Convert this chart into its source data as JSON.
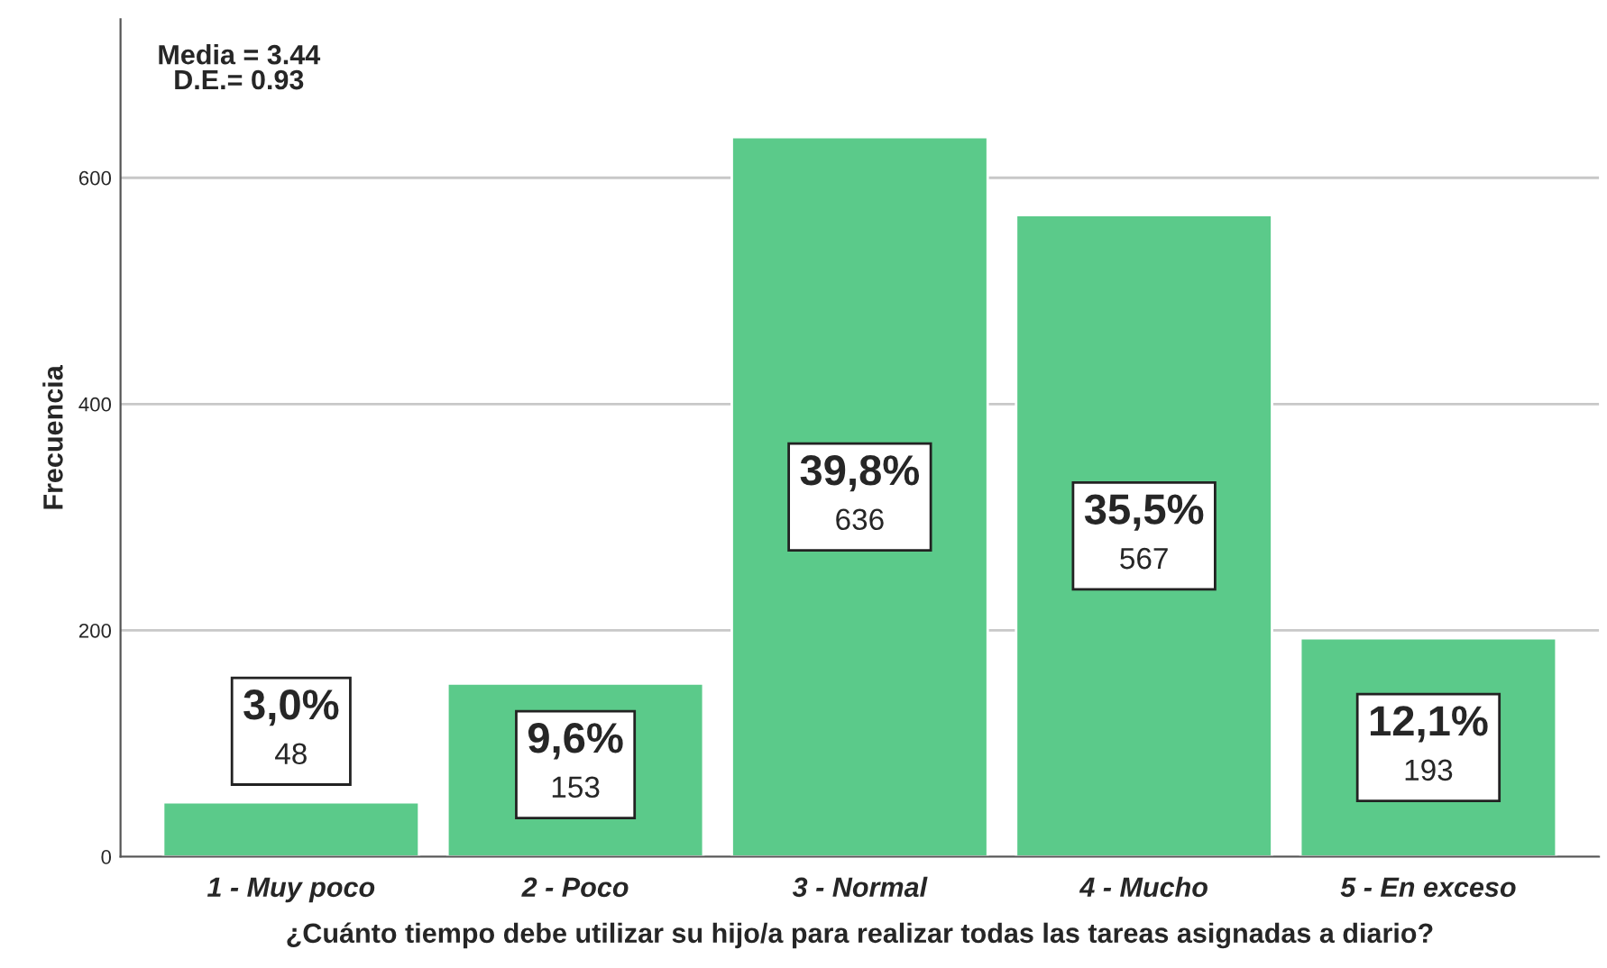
{
  "chart_data": {
    "type": "bar",
    "xlabel": "¿Cuánto tiempo debe utilizar su hijo/a para realizar todas las tareas asignadas a diario?",
    "ylabel": "Frecuencia",
    "categories": [
      "1 - Muy poco",
      "2 - Poco",
      "3 - Normal",
      "4 - Mucho",
      "5 - En exceso"
    ],
    "values": [
      48,
      153,
      636,
      567,
      193
    ],
    "value_labels": [
      "3,0%\n48",
      "9,6%\n153",
      "39,8%\n636",
      "35,5%\n567",
      "12,1%\n193"
    ],
    "color": "#5bca8a",
    "ylim": [
      0,
      740
    ],
    "yticks": [
      0,
      200,
      400,
      600
    ],
    "grid": "y",
    "annotations": [
      "Media = 3.44",
      "D.E.= 0.93"
    ]
  }
}
